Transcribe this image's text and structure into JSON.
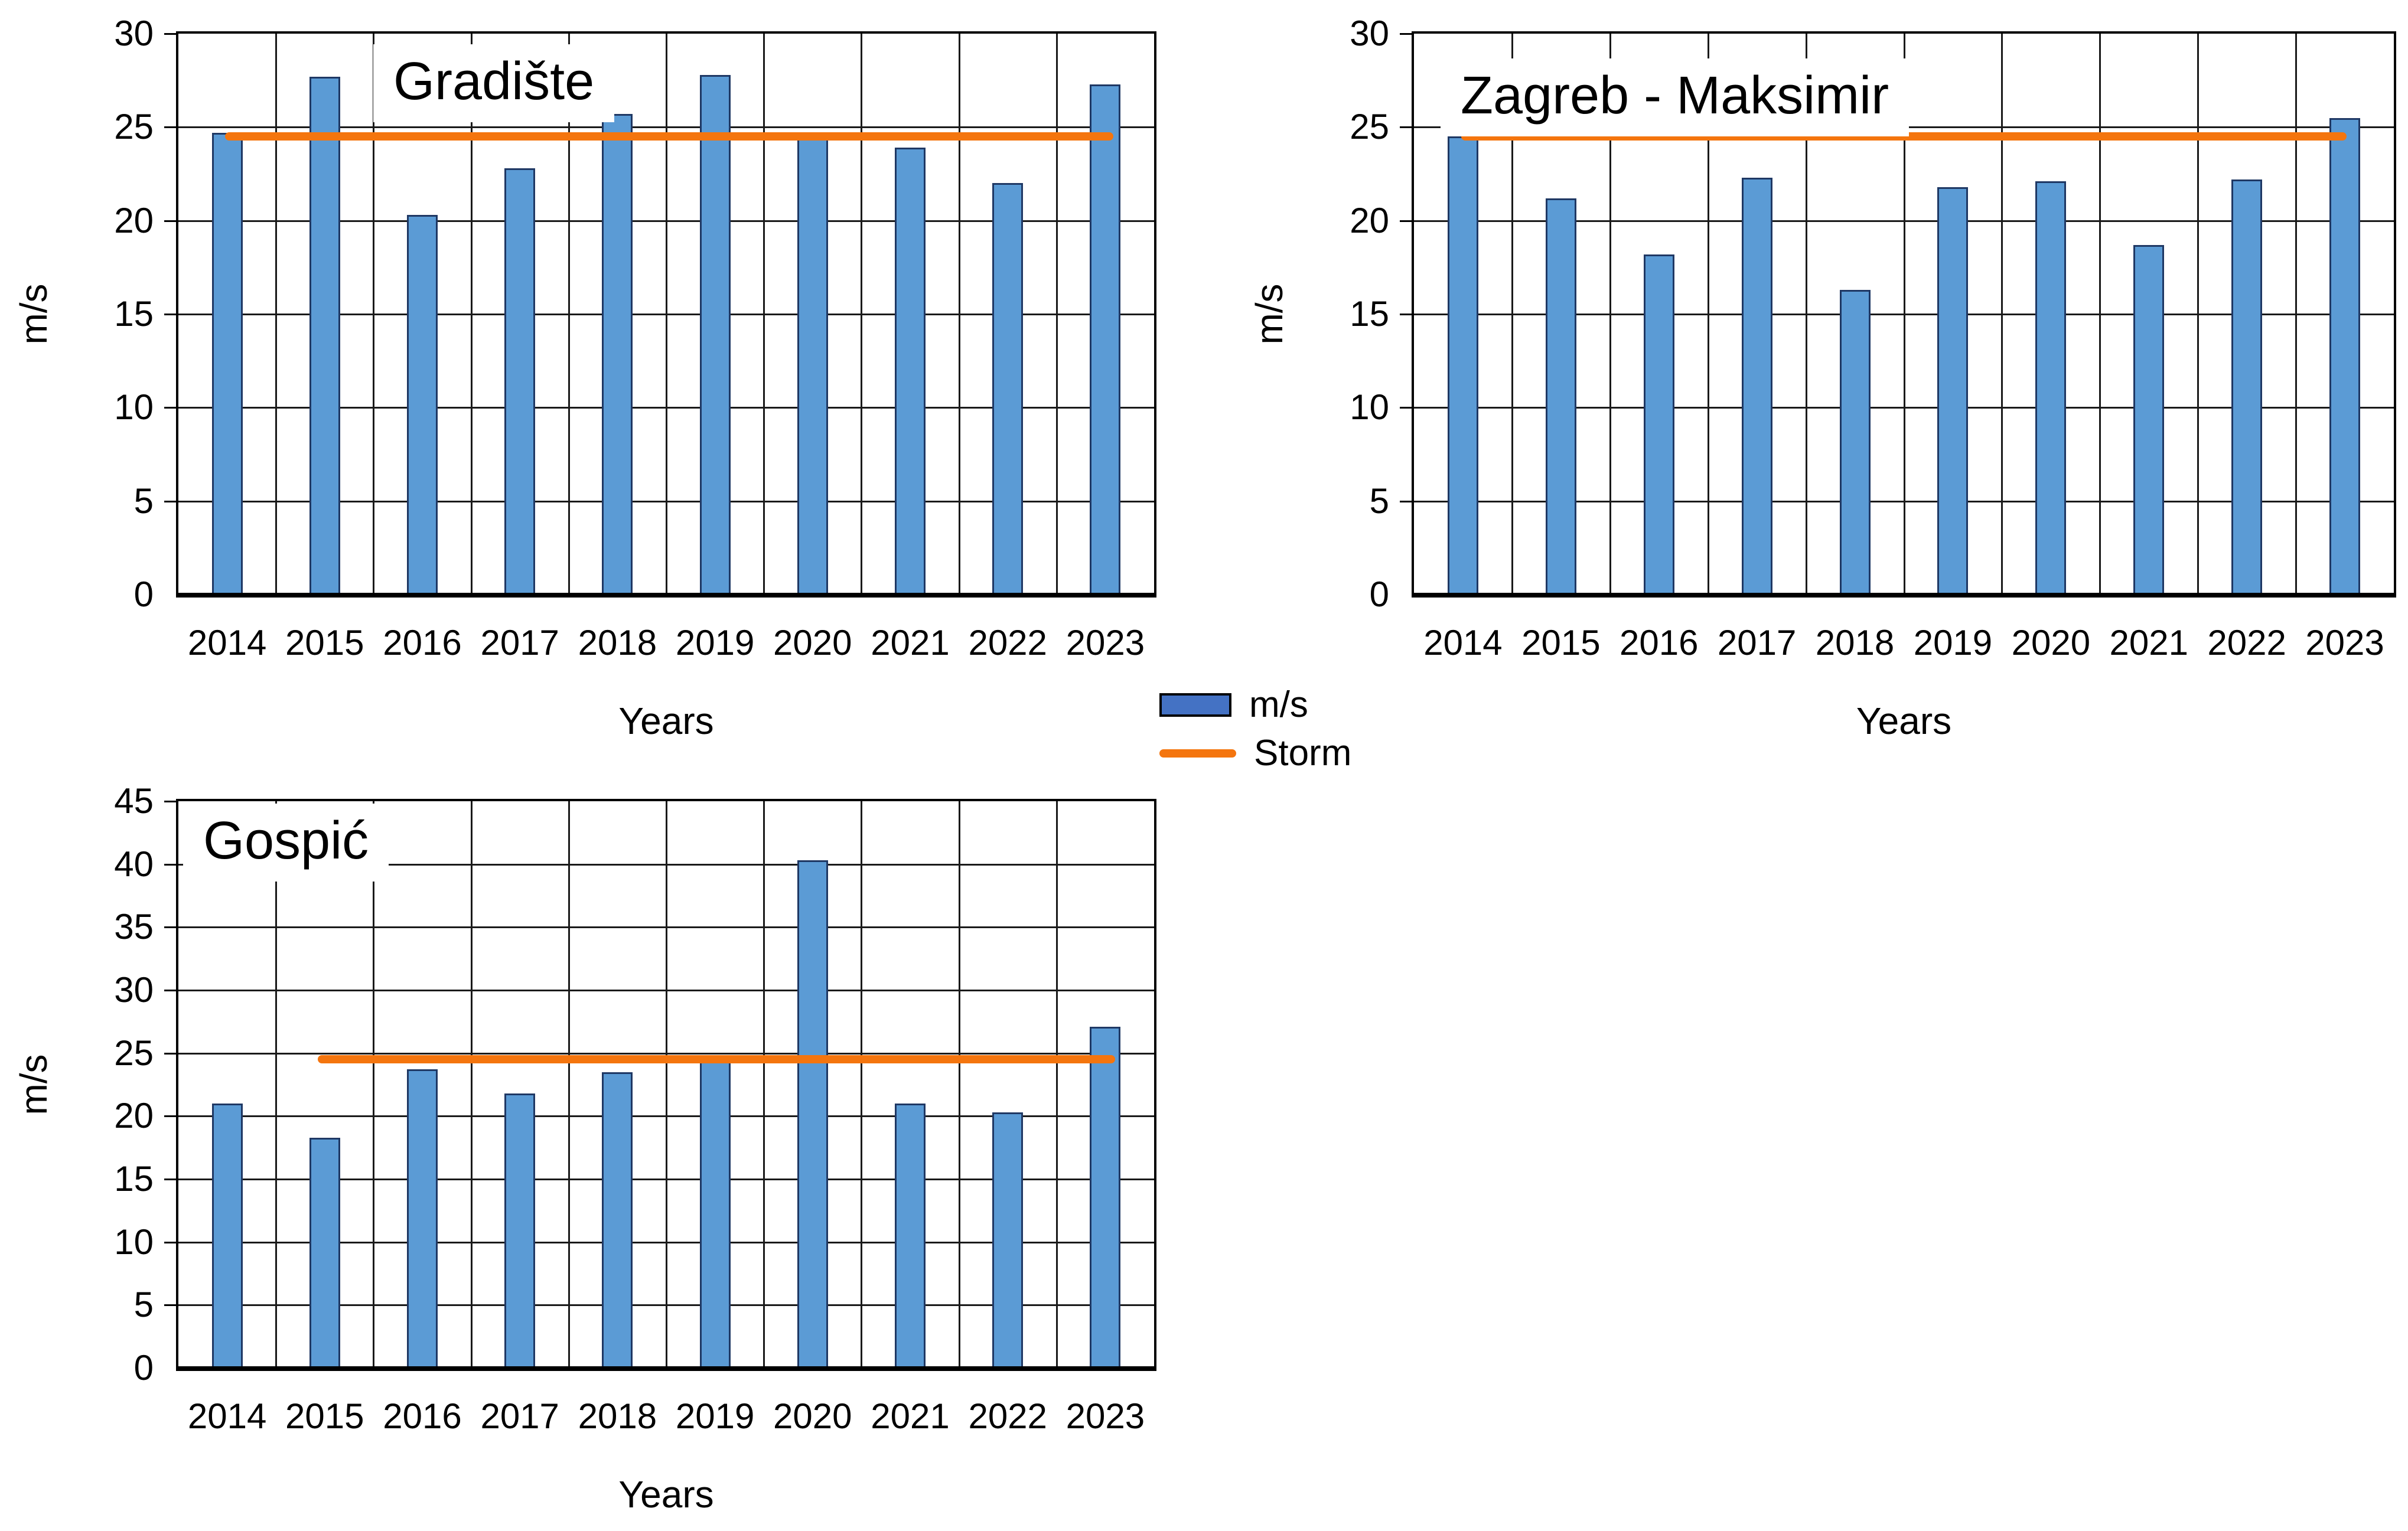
{
  "page": {
    "background": "#ffffff"
  },
  "colors": {
    "bar_fill": "#5B9BD5",
    "bar_border": "#1F3864",
    "legend_swatch_fill": "#4472C4",
    "storm": "#F4750E",
    "gridline": "#1a1a1a",
    "axis": "#000000"
  },
  "legend": {
    "series_label": "m/s",
    "storm_label": "Storm"
  },
  "chart_data": [
    {
      "type": "bar",
      "title": "Gradište",
      "xlabel": "Years",
      "ylabel": "m/s",
      "categories": [
        "2014",
        "2015",
        "2016",
        "2017",
        "2018",
        "2019",
        "2020",
        "2021",
        "2022",
        "2023"
      ],
      "values": [
        24.7,
        27.7,
        20.3,
        22.8,
        25.7,
        27.8,
        24.4,
        23.9,
        22.0,
        27.3
      ],
      "storm_value": 24.5,
      "storm_span": [
        0.048,
        0.958
      ],
      "ylim": [
        0,
        30
      ],
      "ytick_step": 5,
      "grid": "on",
      "legend_position": "right-of-chart-1-below"
    },
    {
      "type": "bar",
      "title": "Zagreb - Maksimir",
      "xlabel": "Years",
      "ylabel": "m/s",
      "categories": [
        "2014",
        "2015",
        "2016",
        "2017",
        "2018",
        "2019",
        "2020",
        "2021",
        "2022",
        "2023"
      ],
      "values": [
        24.5,
        21.2,
        18.2,
        22.3,
        16.3,
        21.8,
        22.1,
        18.7,
        22.2,
        25.5
      ],
      "storm_value": 24.5,
      "storm_span": [
        0.048,
        0.952
      ],
      "ylim": [
        0,
        30
      ],
      "ytick_step": 5,
      "grid": "on"
    },
    {
      "type": "bar",
      "title": "Gospić",
      "xlabel": "Years",
      "ylabel": "m/s",
      "categories": [
        "2014",
        "2015",
        "2016",
        "2017",
        "2018",
        "2019",
        "2020",
        "2021",
        "2022",
        "2023"
      ],
      "values": [
        21.0,
        18.3,
        23.7,
        21.8,
        23.5,
        24.8,
        40.3,
        21.0,
        20.3,
        27.1
      ],
      "storm_value": 24.5,
      "storm_span": [
        0.143,
        0.96
      ],
      "ylim": [
        0,
        45
      ],
      "ytick_step": 5,
      "grid": "on"
    }
  ]
}
